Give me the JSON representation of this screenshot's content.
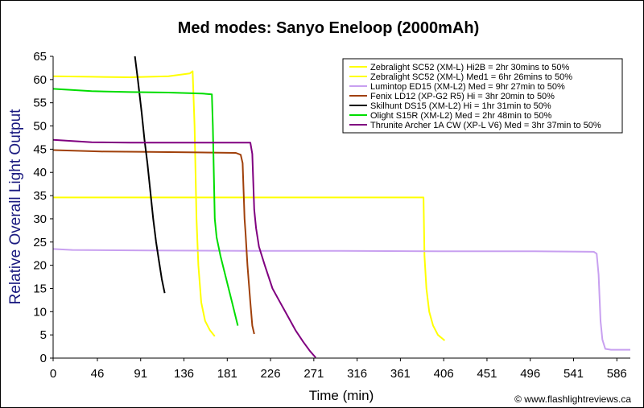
{
  "chart_data": {
    "type": "line",
    "title": "Med modes: Sanyo Eneloop (2000mAh)",
    "xlabel": "Time (min)",
    "ylabel": "Relative Overall Light Output",
    "xlim": [
      0,
      600
    ],
    "ylim": [
      0,
      65
    ],
    "x_ticks": [
      0,
      46,
      91,
      136,
      181,
      226,
      271,
      316,
      361,
      406,
      451,
      496,
      541,
      586
    ],
    "y_ticks": [
      0,
      5,
      10,
      15,
      20,
      25,
      30,
      35,
      40,
      45,
      50,
      55,
      60,
      65
    ],
    "grid": false,
    "legend_position": "top-right",
    "credit": "© www.flashlightreviews.ca",
    "series": [
      {
        "name": "Zebralight SC52 (XM-L) Hi2B = 2hr 30mins to 50%",
        "color": "#ffff00",
        "points": [
          [
            0,
            60.7
          ],
          [
            40,
            60.6
          ],
          [
            80,
            60.5
          ],
          [
            120,
            60.7
          ],
          [
            142,
            61.3
          ],
          [
            145,
            61.8
          ],
          [
            147,
            50
          ],
          [
            149,
            30
          ],
          [
            151,
            20
          ],
          [
            154,
            12
          ],
          [
            158,
            8
          ],
          [
            163,
            6
          ],
          [
            168,
            4.7
          ]
        ]
      },
      {
        "name": "Zebralight SC52 (XM-L) Med1 = 6hr 26mins to 50%",
        "color": "#ffff00",
        "points": [
          [
            0,
            34.6
          ],
          [
            100,
            34.6
          ],
          [
            200,
            34.6
          ],
          [
            300,
            34.6
          ],
          [
            380,
            34.6
          ],
          [
            385,
            34.6
          ],
          [
            386,
            22
          ],
          [
            388,
            15
          ],
          [
            391,
            10
          ],
          [
            395,
            7
          ],
          [
            400,
            5
          ],
          [
            407,
            3.8
          ]
        ]
      },
      {
        "name": "Lumintop ED15 (XM-L2) Med = 9hr 27min to 50%",
        "color": "#c8a0f0",
        "points": [
          [
            0,
            23.5
          ],
          [
            20,
            23.3
          ],
          [
            100,
            23.2
          ],
          [
            200,
            23.1
          ],
          [
            300,
            23.1
          ],
          [
            400,
            23.0
          ],
          [
            500,
            23.0
          ],
          [
            562,
            22.9
          ],
          [
            565,
            22.5
          ],
          [
            567,
            18
          ],
          [
            569,
            8
          ],
          [
            571,
            4
          ],
          [
            574,
            2
          ],
          [
            580,
            1.8
          ],
          [
            600,
            1.8
          ]
        ]
      },
      {
        "name": "Fenix LD12 (XP-G2 R5) Hi = 3hr 20min to 50%",
        "color": "#a0400a",
        "points": [
          [
            0,
            44.8
          ],
          [
            50,
            44.5
          ],
          [
            100,
            44.4
          ],
          [
            150,
            44.3
          ],
          [
            190,
            44.2
          ],
          [
            195,
            43.8
          ],
          [
            197,
            42
          ],
          [
            198,
            36
          ],
          [
            199,
            30
          ],
          [
            200,
            27
          ],
          [
            202,
            20
          ],
          [
            205,
            12
          ],
          [
            207,
            7
          ],
          [
            209,
            5.2
          ]
        ]
      },
      {
        "name": "Skilhunt DS15 (XM-L2) Hi = 1hr 31min to 50%",
        "color": "#000000",
        "points": [
          [
            85,
            65
          ],
          [
            88,
            60
          ],
          [
            92,
            53
          ],
          [
            95,
            47
          ],
          [
            98,
            42
          ],
          [
            101,
            36
          ],
          [
            104,
            30
          ],
          [
            107,
            25
          ],
          [
            110,
            21
          ],
          [
            113,
            17
          ],
          [
            116,
            14
          ]
        ]
      },
      {
        "name": "Olight S15R (XM-L2) Med = 2hr 48min to 50%",
        "color": "#00dd00",
        "points": [
          [
            0,
            58
          ],
          [
            40,
            57.5
          ],
          [
            80,
            57.3
          ],
          [
            120,
            57.2
          ],
          [
            155,
            57.0
          ],
          [
            165,
            56.8
          ],
          [
            166,
            50
          ],
          [
            167,
            40
          ],
          [
            168,
            30
          ],
          [
            170,
            26
          ],
          [
            174,
            22
          ],
          [
            180,
            17
          ],
          [
            186,
            12
          ],
          [
            192,
            7
          ]
        ]
      },
      {
        "name": "Thrunite Archer 1A CW (XP-L V6) Med = 3hr 37min to 50%",
        "color": "#800080",
        "points": [
          [
            0,
            47
          ],
          [
            40,
            46.5
          ],
          [
            80,
            46.4
          ],
          [
            120,
            46.4
          ],
          [
            160,
            46.4
          ],
          [
            205,
            46.4
          ],
          [
            207,
            44
          ],
          [
            208,
            38
          ],
          [
            209,
            32
          ],
          [
            211,
            28
          ],
          [
            214,
            24
          ],
          [
            220,
            20
          ],
          [
            228,
            15
          ],
          [
            236,
            12
          ],
          [
            244,
            9
          ],
          [
            252,
            6
          ],
          [
            260,
            3.5
          ],
          [
            267,
            1.5
          ],
          [
            273,
            0.1
          ]
        ]
      }
    ]
  }
}
